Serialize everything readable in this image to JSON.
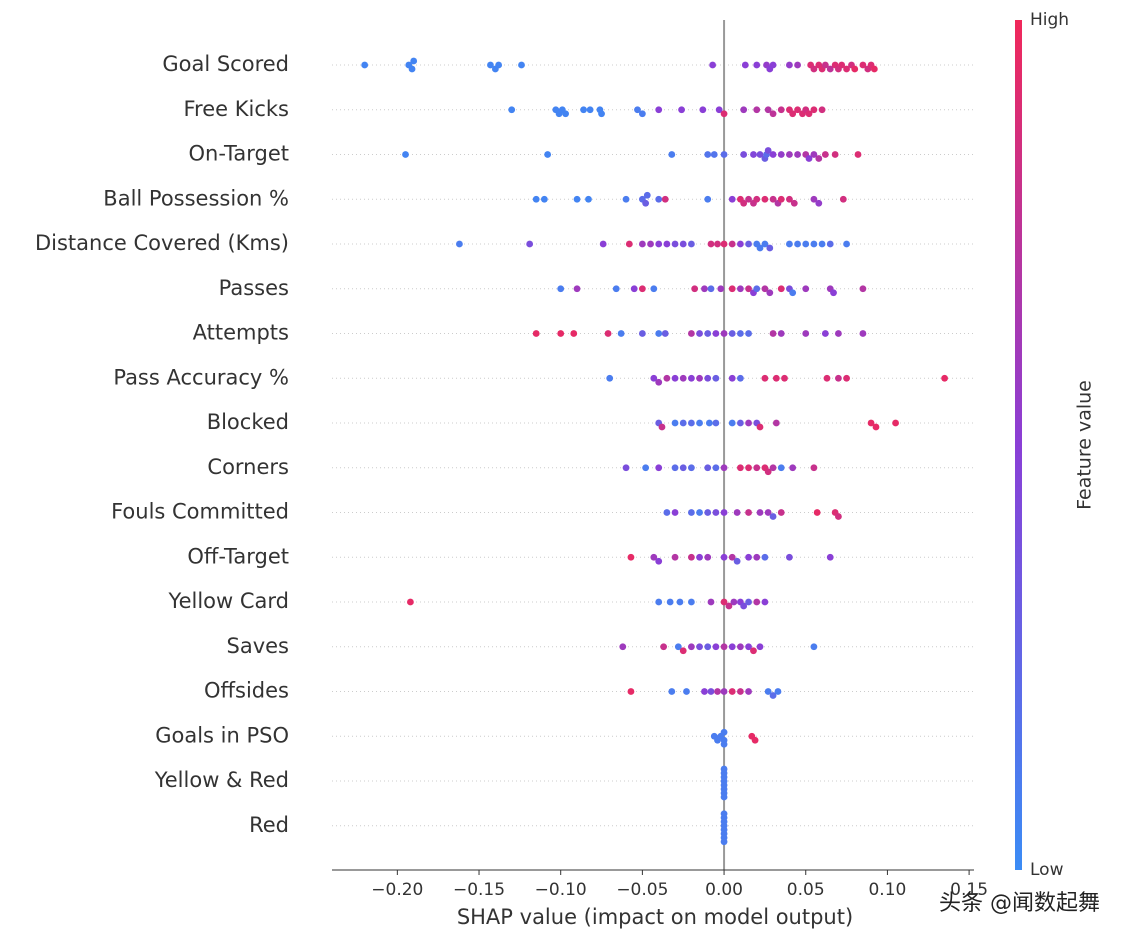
{
  "chart_data": {
    "type": "beeswarm",
    "x_label": "SHAP value (impact on model output)",
    "colorbar_label": "Feature value",
    "colorbar_high": "High",
    "colorbar_low": "Low",
    "colormap": [
      "#3b8cf5",
      "#8a3fd6",
      "#f0285a"
    ],
    "watermark": "头条 @闻数起舞",
    "xlim": [
      -0.24,
      0.153
    ],
    "xticks": [
      {
        "value": -0.2,
        "label": "−0.20"
      },
      {
        "value": -0.15,
        "label": "−0.15"
      },
      {
        "value": -0.1,
        "label": "−0.10"
      },
      {
        "value": -0.05,
        "label": "−0.05"
      },
      {
        "value": 0,
        "label": "0.00"
      },
      {
        "value": 0.05,
        "label": "0.05"
      },
      {
        "value": 0.1,
        "label": "0.10"
      },
      {
        "value": 0.15,
        "label": "0.15"
      }
    ],
    "categories": [
      "Goal Scored",
      "Free Kicks",
      "On-Target",
      "Ball Possession %",
      "Distance Covered (Kms)",
      "Passes",
      "Attempts",
      "Pass Accuracy %",
      "Blocked",
      "Corners",
      "Fouls Committed",
      "Off-Target",
      "Yellow Card",
      "Saves",
      "Offsides",
      "Goals in PSO",
      "Yellow & Red",
      "Red"
    ],
    "values": [
      [
        -0.22,
        -0.193,
        -0.191,
        -0.19,
        -0.143,
        -0.14,
        -0.138,
        -0.124,
        -0.007,
        0.013,
        0.02,
        0.026,
        0.028,
        0.03,
        0.04,
        0.045,
        0.053,
        0.055,
        0.058,
        0.06,
        0.062,
        0.065,
        0.068,
        0.07,
        0.072,
        0.075,
        0.078,
        0.08,
        0.085,
        0.088,
        0.09,
        0.092
      ],
      [
        -0.13,
        -0.103,
        -0.101,
        -0.099,
        -0.097,
        -0.086,
        -0.082,
        -0.076,
        -0.075,
        -0.053,
        -0.05,
        -0.04,
        -0.026,
        -0.013,
        -0.003,
        0,
        0.012,
        0.02,
        0.027,
        0.03,
        0.035,
        0.04,
        0.042,
        0.045,
        0.048,
        0.05,
        0.052,
        0.055,
        0.06
      ],
      [
        -0.195,
        -0.108,
        -0.032,
        -0.01,
        -0.006,
        0,
        0.012,
        0.018,
        0.022,
        0.025,
        0.026,
        0.027,
        0.03,
        0.035,
        0.04,
        0.045,
        0.05,
        0.052,
        0.055,
        0.058,
        0.062,
        0.068,
        0.082
      ],
      [
        -0.115,
        -0.11,
        -0.09,
        -0.083,
        -0.06,
        -0.05,
        -0.048,
        -0.047,
        -0.04,
        -0.01,
        -0.036,
        0.005,
        0.01,
        0.012,
        0.015,
        0.018,
        0.02,
        0.025,
        0.03,
        0.033,
        0.035,
        0.04,
        0.043,
        0.055,
        0.058,
        0.073
      ],
      [
        -0.162,
        -0.119,
        -0.074,
        -0.058,
        -0.05,
        -0.045,
        -0.04,
        -0.035,
        -0.03,
        -0.025,
        -0.02,
        -0.008,
        -0.004,
        0,
        0.005,
        0.01,
        0.015,
        0.02,
        0.022,
        0.025,
        0.028,
        0.04,
        0.045,
        0.05,
        0.055,
        0.06,
        0.065,
        0.075
      ],
      [
        -0.1,
        -0.09,
        -0.066,
        -0.055,
        -0.05,
        -0.043,
        -0.018,
        -0.012,
        -0.008,
        -0.002,
        0.005,
        0.01,
        0.015,
        0.018,
        0.02,
        0.025,
        0.028,
        0.035,
        0.04,
        0.042,
        0.05,
        0.065,
        0.067,
        0.085
      ],
      [
        -0.115,
        -0.1,
        -0.092,
        -0.071,
        -0.063,
        -0.05,
        -0.04,
        -0.036,
        -0.02,
        -0.015,
        -0.01,
        -0.005,
        0,
        0.005,
        0.01,
        0.015,
        0.03,
        0.035,
        0.05,
        0.062,
        0.07,
        0.085
      ],
      [
        -0.07,
        -0.043,
        -0.04,
        -0.035,
        -0.03,
        -0.025,
        -0.02,
        -0.015,
        -0.01,
        -0.005,
        0.005,
        0.01,
        0.025,
        0.032,
        0.037,
        0.063,
        0.07,
        0.075,
        0.135
      ],
      [
        -0.04,
        -0.038,
        -0.03,
        -0.025,
        -0.02,
        -0.015,
        -0.009,
        -0.005,
        0.005,
        0.01,
        0.015,
        0.02,
        0.022,
        0.032,
        0.09,
        0.093,
        0.105
      ],
      [
        -0.06,
        -0.048,
        -0.04,
        -0.03,
        -0.025,
        -0.02,
        -0.01,
        -0.005,
        0,
        0.01,
        0.015,
        0.02,
        0.025,
        0.027,
        0.03,
        0.035,
        0.042,
        0.055
      ],
      [
        -0.035,
        -0.03,
        -0.02,
        -0.015,
        -0.01,
        -0.005,
        0,
        0.008,
        0.015,
        0.022,
        0.027,
        0.03,
        0.035,
        0.057,
        0.068,
        0.07
      ],
      [
        -0.057,
        -0.043,
        -0.04,
        -0.03,
        -0.02,
        -0.015,
        -0.01,
        0,
        0.005,
        0.008,
        0.015,
        0.02,
        0.025,
        0.04,
        0.065
      ],
      [
        -0.192,
        -0.04,
        -0.033,
        -0.027,
        -0.02,
        -0.008,
        0,
        0.003,
        0.006,
        0.01,
        0.012,
        0.015,
        0.02,
        0.025
      ],
      [
        -0.062,
        -0.037,
        -0.028,
        -0.025,
        -0.02,
        -0.015,
        -0.01,
        -0.005,
        0,
        0.005,
        0.01,
        0.015,
        0.018,
        0.022,
        0.055
      ],
      [
        -0.057,
        -0.032,
        -0.023,
        -0.012,
        -0.008,
        -0.004,
        0,
        0.005,
        0.01,
        0.015,
        0.027,
        0.03,
        0.033
      ],
      [
        -0.006,
        -0.004,
        -0.002,
        0,
        0,
        0,
        0.017,
        0.019
      ],
      [
        0,
        0,
        0,
        0,
        0,
        0,
        0,
        0
      ],
      [
        0,
        0,
        0,
        0,
        0,
        0,
        0,
        0
      ]
    ],
    "feature_values": [
      [
        0.05,
        0.05,
        0.05,
        0.05,
        0.05,
        0.05,
        0.05,
        0.05,
        0.5,
        0.5,
        0.5,
        0.55,
        0.5,
        0.5,
        0.55,
        0.6,
        0.9,
        0.85,
        0.9,
        0.9,
        0.8,
        0.75,
        0.9,
        0.85,
        0.9,
        0.9,
        0.85,
        0.95,
        0.9,
        0.85,
        0.9,
        0.95
      ],
      [
        0.05,
        0.05,
        0.05,
        0.05,
        0.05,
        0.05,
        0.05,
        0.05,
        0.05,
        0.1,
        0.1,
        0.5,
        0.5,
        0.5,
        0.5,
        0.9,
        0.6,
        0.7,
        0.7,
        0.75,
        0.8,
        0.9,
        0.9,
        0.9,
        0.9,
        0.85,
        0.9,
        0.9,
        0.85
      ],
      [
        0.05,
        0.05,
        0.1,
        0.15,
        0.15,
        0.2,
        0.4,
        0.45,
        0.4,
        0.3,
        0.2,
        0.4,
        0.5,
        0.55,
        0.6,
        0.6,
        0.7,
        0.5,
        0.6,
        0.7,
        0.8,
        0.85,
        0.9
      ],
      [
        0.05,
        0.05,
        0.05,
        0.05,
        0.1,
        0.2,
        0.3,
        0.2,
        0.2,
        0.1,
        0.85,
        0.5,
        0.9,
        0.85,
        0.8,
        0.8,
        0.85,
        0.9,
        0.8,
        0.7,
        0.9,
        0.85,
        0.8,
        0.6,
        0.55,
        0.85
      ],
      [
        0.1,
        0.4,
        0.5,
        0.9,
        0.6,
        0.6,
        0.5,
        0.5,
        0.4,
        0.4,
        0.3,
        0.85,
        0.85,
        0.9,
        0.8,
        0.5,
        0.3,
        0.1,
        0.1,
        0.1,
        0.3,
        0.1,
        0.1,
        0.1,
        0.1,
        0.1,
        0.2,
        0.1
      ],
      [
        0.1,
        0.6,
        0.1,
        0.5,
        0.9,
        0.1,
        0.85,
        0.6,
        0.2,
        0.6,
        0.9,
        0.6,
        0.8,
        0.5,
        0.2,
        0.7,
        0.6,
        0.9,
        0.4,
        0.1,
        0.6,
        0.6,
        0.5,
        0.7
      ],
      [
        0.95,
        0.95,
        0.95,
        0.9,
        0.1,
        0.3,
        0.1,
        0.3,
        0.7,
        0.4,
        0.3,
        0.5,
        0.6,
        0.3,
        0.2,
        0.2,
        0.7,
        0.6,
        0.6,
        0.5,
        0.6,
        0.6
      ],
      [
        0.1,
        0.5,
        0.6,
        0.7,
        0.5,
        0.6,
        0.5,
        0.6,
        0.4,
        0.3,
        0.5,
        0.2,
        0.9,
        0.9,
        0.9,
        0.9,
        0.8,
        0.9,
        0.95
      ],
      [
        0.3,
        0.8,
        0.1,
        0.2,
        0.2,
        0.1,
        0.1,
        0.2,
        0.1,
        0.3,
        0.6,
        0.4,
        0.9,
        0.7,
        0.95,
        0.95,
        0.95
      ],
      [
        0.4,
        0.1,
        0.5,
        0.2,
        0.3,
        0.2,
        0.3,
        0.2,
        0.6,
        0.9,
        0.9,
        0.8,
        0.9,
        0.85,
        0.7,
        0.1,
        0.6,
        0.8
      ],
      [
        0.2,
        0.5,
        0.2,
        0.1,
        0.3,
        0.4,
        0.5,
        0.6,
        0.8,
        0.6,
        0.6,
        0.3,
        0.8,
        0.95,
        0.9,
        0.85
      ],
      [
        0.95,
        0.6,
        0.5,
        0.7,
        0.8,
        0.5,
        0.6,
        0.5,
        0.7,
        0.3,
        0.5,
        0.6,
        0.2,
        0.4,
        0.5
      ],
      [
        0.95,
        0.1,
        0.1,
        0.1,
        0.1,
        0.6,
        0.9,
        0.8,
        0.6,
        0.5,
        0.4,
        0.3,
        0.7,
        0.5
      ],
      [
        0.6,
        0.8,
        0.1,
        0.9,
        0.6,
        0.4,
        0.3,
        0.5,
        0.7,
        0.5,
        0.6,
        0.5,
        0.9,
        0.5,
        0.1
      ],
      [
        0.95,
        0.1,
        0.1,
        0.5,
        0.4,
        0.7,
        0.6,
        0.9,
        0.8,
        0.6,
        0.1,
        0.2,
        0.1
      ],
      [
        0.1,
        0.1,
        0.1,
        0.1,
        0.1,
        0.1,
        0.95,
        0.95
      ],
      [
        0.1,
        0.1,
        0.1,
        0.1,
        0.1,
        0.1,
        0.1,
        0.1
      ],
      [
        0.1,
        0.1,
        0.1,
        0.1,
        0.1,
        0.1,
        0.1,
        0.1
      ]
    ]
  }
}
